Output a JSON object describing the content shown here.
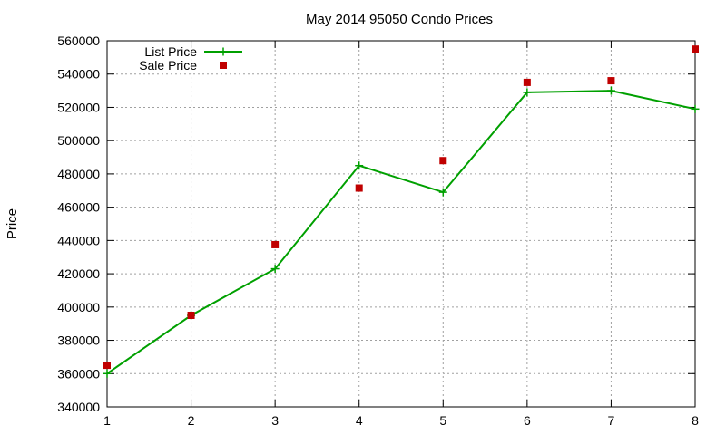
{
  "chart_data": {
    "type": "line",
    "title": "May 2014 95050 Condo Prices",
    "xlabel": "",
    "ylabel": "Price",
    "x": [
      1,
      2,
      3,
      4,
      5,
      6,
      7,
      8
    ],
    "xlim": [
      1,
      8
    ],
    "ylim": [
      340000,
      560000
    ],
    "xticks": [
      "1",
      "2",
      "3",
      "4",
      "5",
      "6",
      "7",
      "8"
    ],
    "yticks": [
      "340000",
      "360000",
      "380000",
      "400000",
      "420000",
      "440000",
      "460000",
      "480000",
      "500000",
      "520000",
      "540000",
      "560000"
    ],
    "grid": true,
    "legend_position": "top-left",
    "series": [
      {
        "name": "List Price",
        "kind": "line",
        "marker": "plus",
        "color": "#00a000",
        "values": [
          360000,
          395000,
          423000,
          485000,
          469000,
          529000,
          530000,
          519000
        ]
      },
      {
        "name": "Sale Price",
        "kind": "scatter",
        "marker": "square",
        "color": "#c00000",
        "values": [
          365000,
          395000,
          437500,
          471500,
          488000,
          535000,
          536000,
          555000
        ]
      }
    ]
  }
}
